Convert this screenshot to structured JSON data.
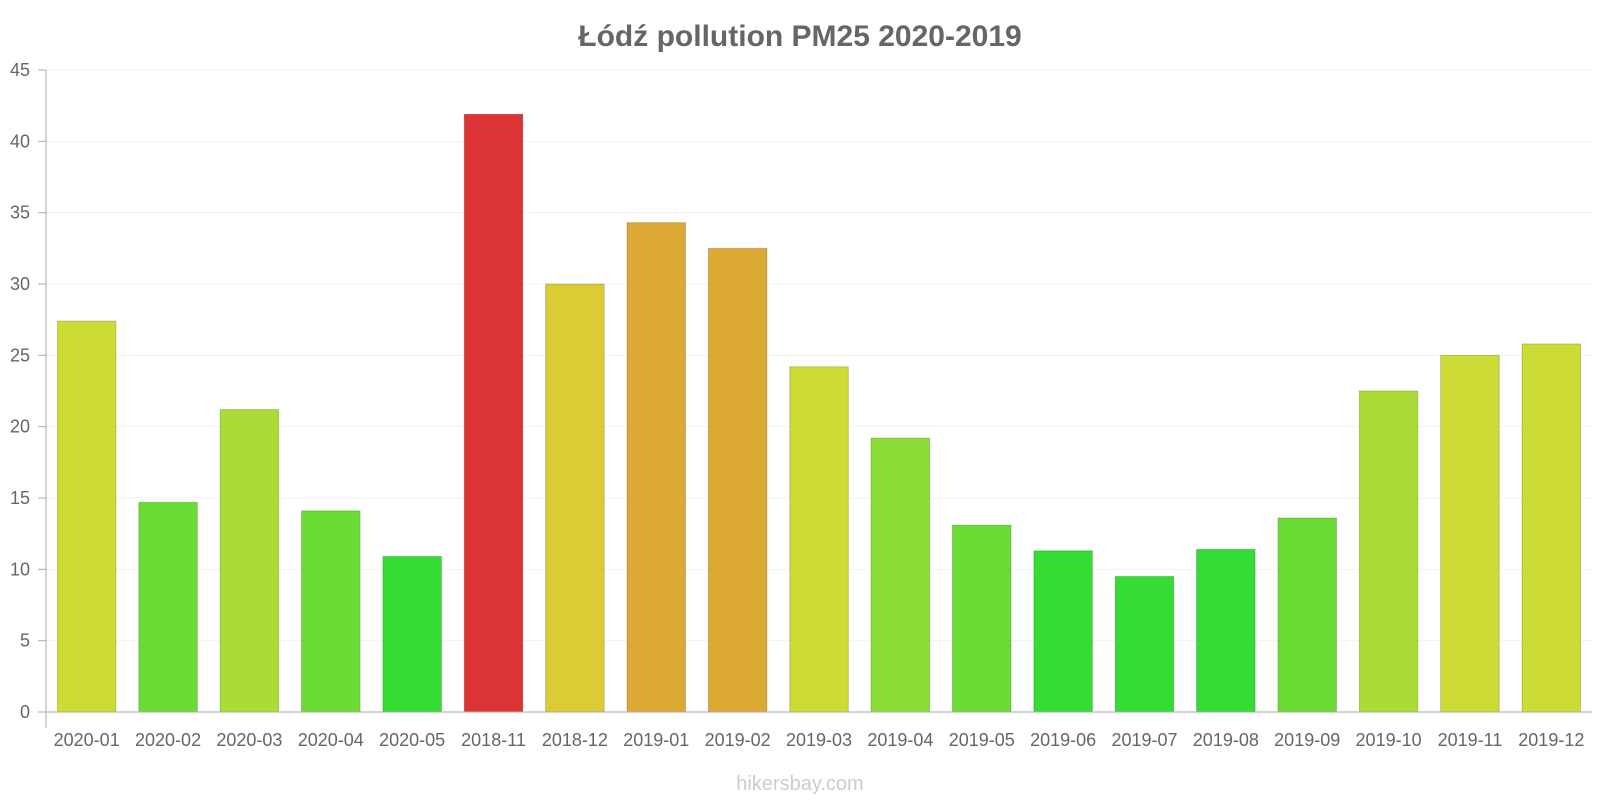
{
  "chart_data": {
    "type": "bar",
    "title": "Łódź pollution PM25 2020-2019",
    "xlabel": "",
    "ylabel": "",
    "ylim": [
      0,
      45
    ],
    "yticks": [
      "0",
      "5",
      "10",
      "15",
      "20",
      "25",
      "30",
      "35",
      "40",
      "45"
    ],
    "categories": [
      "2020-01",
      "2020-02",
      "2020-03",
      "2020-04",
      "2020-05",
      "2018-11",
      "2018-12",
      "2019-01",
      "2019-02",
      "2019-03",
      "2019-04",
      "2019-05",
      "2019-06",
      "2019-07",
      "2019-08",
      "2019-09",
      "2019-10",
      "2019-11",
      "2019-12"
    ],
    "values": [
      27.4,
      14.7,
      21.2,
      14.1,
      10.9,
      41.9,
      30.0,
      34.3,
      32.5,
      24.2,
      19.2,
      13.1,
      11.3,
      9.5,
      11.4,
      13.6,
      22.5,
      25.0,
      25.8
    ],
    "colors": [
      "#cddc34",
      "#6bdc34",
      "#a9dc34",
      "#6bdc34",
      "#34dc34",
      "#dc3434",
      "#dccb34",
      "#dcaa34",
      "#dcaa34",
      "#cddc34",
      "#8bdc34",
      "#6bdc34",
      "#34dc34",
      "#34dc34",
      "#34dc34",
      "#6bdc34",
      "#a9dc34",
      "#cddc34",
      "#cddc34"
    ],
    "grid": true
  },
  "watermark": "hikersbay.com"
}
